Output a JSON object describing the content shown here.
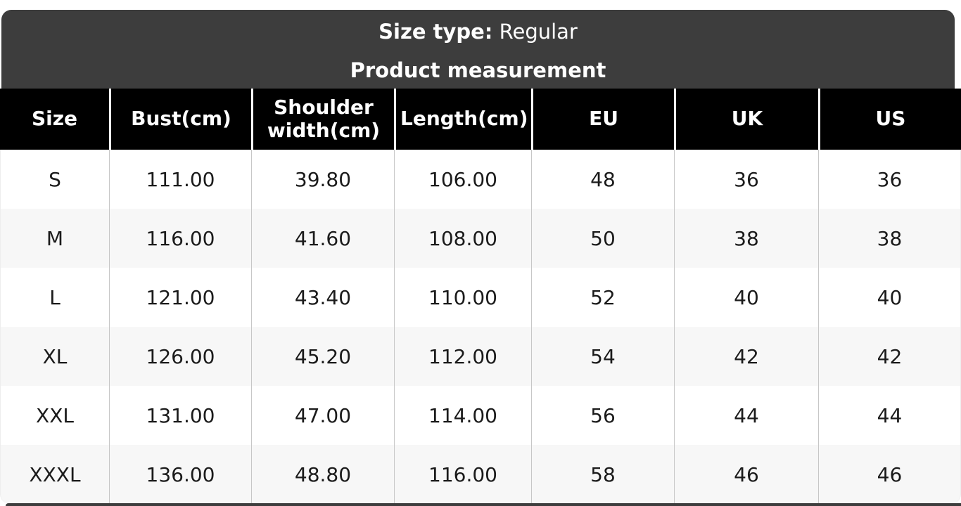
{
  "header_band": {
    "size_type_label": "Size type:",
    "size_type_value": "Regular",
    "title": "Product measurement"
  },
  "table": {
    "headers": [
      "Size",
      "Bust(cm)",
      "Shoulder width(cm)",
      "Length(cm)",
      "EU",
      "UK",
      "US"
    ],
    "rows": [
      {
        "cells": [
          "S",
          "111.00",
          "39.80",
          "106.00",
          "48",
          "36",
          "36"
        ]
      },
      {
        "cells": [
          "M",
          "116.00",
          "41.60",
          "108.00",
          "50",
          "38",
          "38"
        ]
      },
      {
        "cells": [
          "L",
          "121.00",
          "43.40",
          "110.00",
          "52",
          "40",
          "40"
        ]
      },
      {
        "cells": [
          "XL",
          "126.00",
          "45.20",
          "112.00",
          "54",
          "42",
          "42"
        ]
      },
      {
        "cells": [
          "XXL",
          "131.00",
          "47.00",
          "114.00",
          "56",
          "44",
          "44"
        ]
      },
      {
        "cells": [
          "XXXL",
          "136.00",
          "48.80",
          "116.00",
          "58",
          "46",
          "46"
        ]
      }
    ]
  },
  "colors": {
    "band_background": "#3d3d3d",
    "table_header_background": "#000000",
    "row_background": "#ffffff",
    "row_alternate_background": "#f7f7f7",
    "header_text": "#ffffff",
    "body_text": "#1b1b1b"
  }
}
